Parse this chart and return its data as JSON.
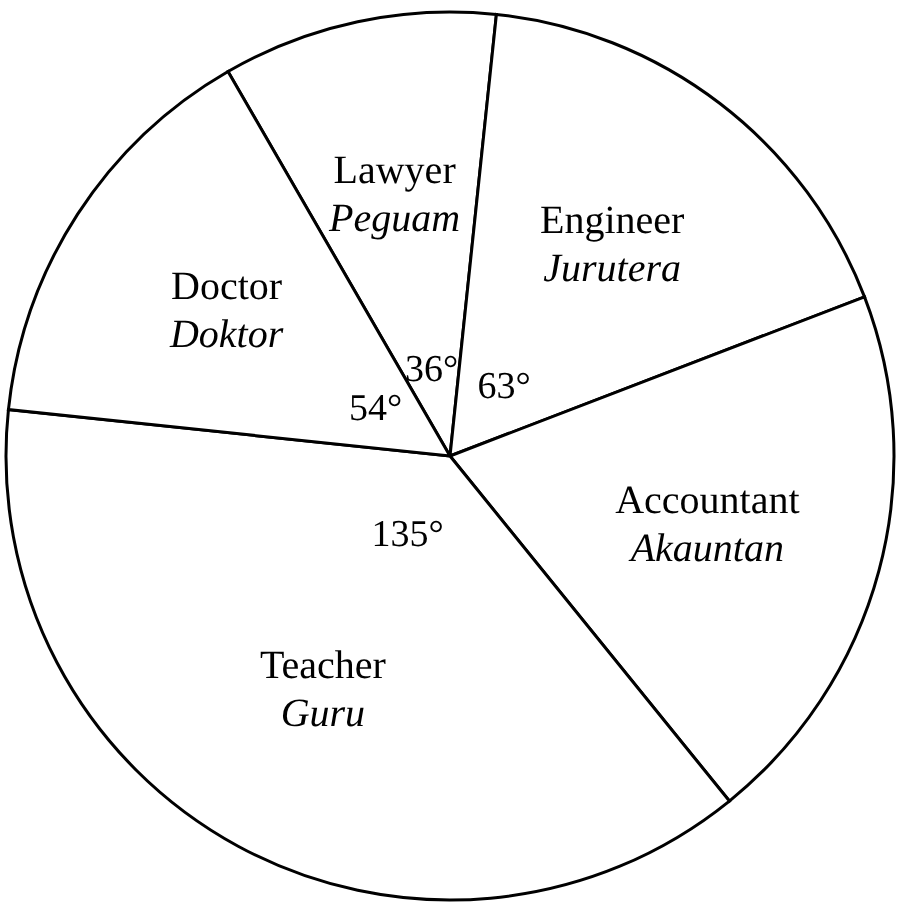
{
  "chart_data": {
    "type": "pie",
    "categories": [
      "Lawyer\nPeguam",
      "Engineer\nJurutera",
      "Accountant\nAkauntan",
      "Teacher\nGuru",
      "Doctor\nDoktor"
    ],
    "values": [
      36,
      63,
      72,
      135,
      54
    ],
    "colors": [
      "#ffffff",
      "#ffffff",
      "#ffffff",
      "#ffffff",
      "#ffffff"
    ],
    "value_labels": [
      "36°",
      "63°",
      null,
      "135°",
      "54°"
    ],
    "legend": false
  }
}
